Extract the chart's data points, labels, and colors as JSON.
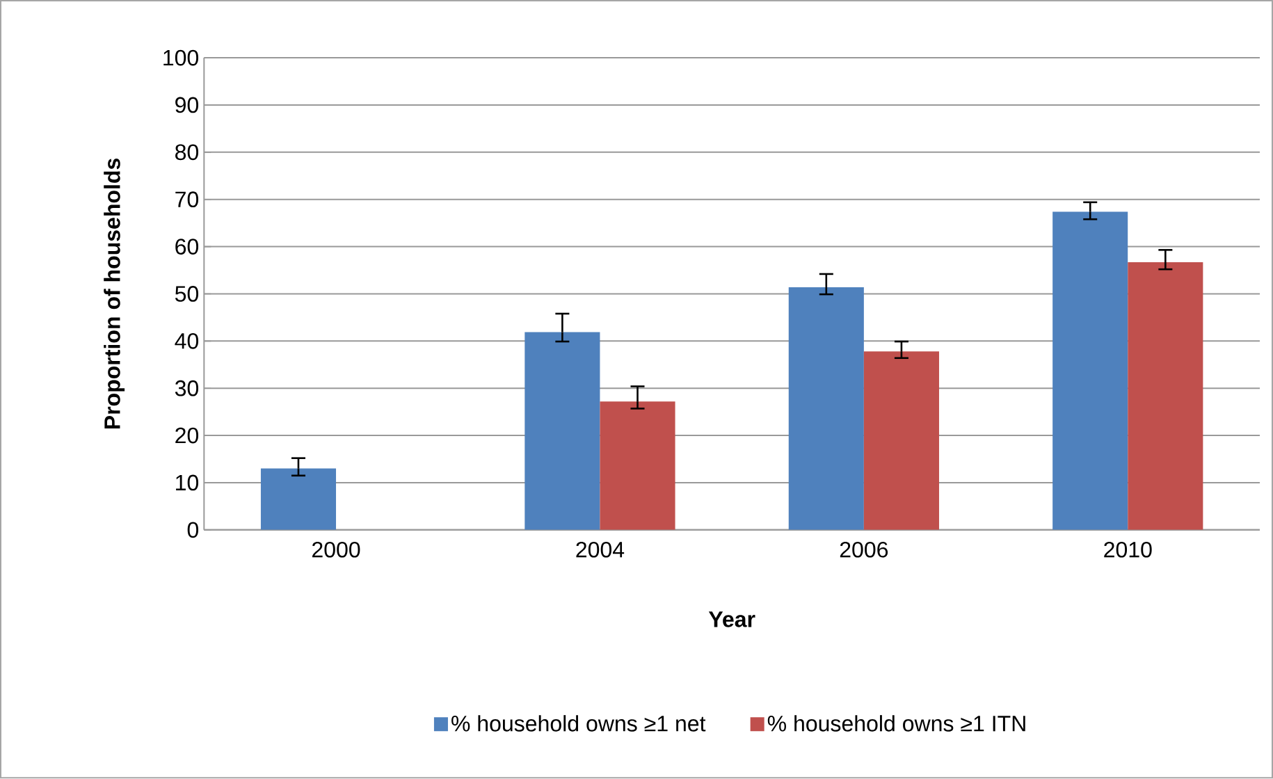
{
  "chart_data": {
    "type": "bar",
    "xlabel": "Year",
    "ylabel": "Proportion of households",
    "categories": [
      "2000",
      "2004",
      "2006",
      "2010"
    ],
    "series": [
      {
        "name": "% household owns ≥1 net",
        "color": "#4f81bd",
        "values": [
          13.0,
          41.9,
          51.4,
          67.4
        ],
        "errors": [
          [
            11.5,
            15.2
          ],
          [
            39.9,
            45.8
          ],
          [
            49.9,
            54.2
          ],
          [
            65.8,
            69.4
          ]
        ]
      },
      {
        "name": "% household owns ≥1 ITN",
        "color": "#c0504d",
        "values": [
          null,
          27.2,
          37.8,
          56.7
        ],
        "errors": [
          null,
          [
            25.7,
            30.4
          ],
          [
            36.4,
            39.9
          ],
          [
            55.2,
            59.3
          ]
        ]
      }
    ],
    "ylim": [
      0,
      100
    ],
    "yticks": [
      0,
      10,
      20,
      30,
      40,
      50,
      60,
      70,
      80,
      90,
      100
    ],
    "grid": "y",
    "legend": "bottom"
  }
}
